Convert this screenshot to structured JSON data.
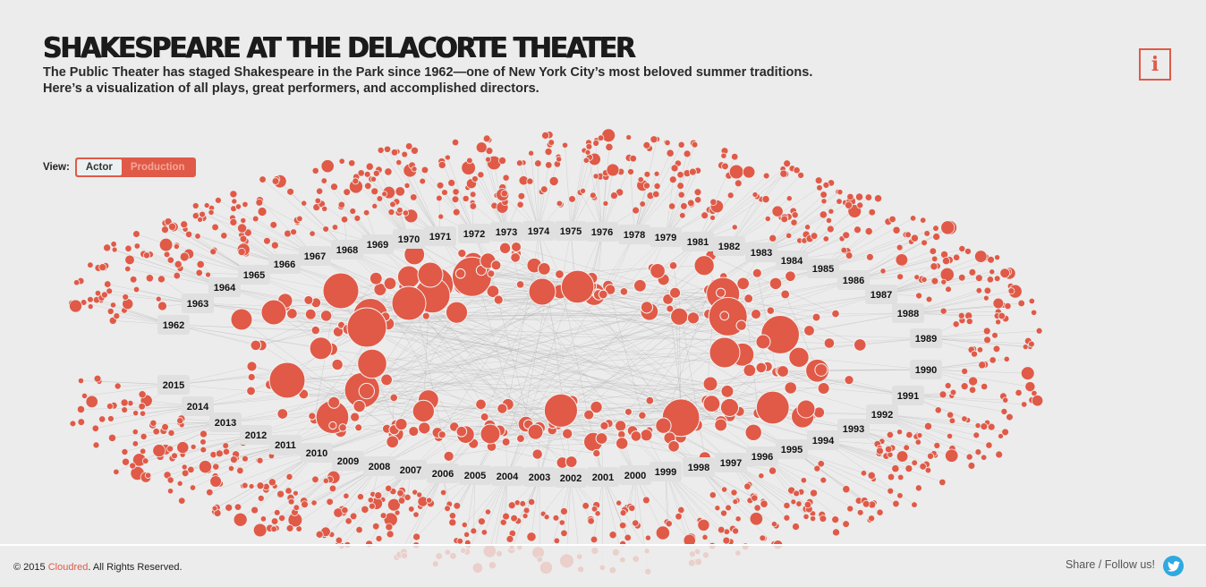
{
  "header": {
    "title": "SHAKESPEARE AT THE DELACORTE THEATER",
    "subtitle_line1": "The Public Theater has staged Shakespeare in the Park since 1962—one of New York City’s most beloved summer traditions.",
    "subtitle_line2": "Here’s a visualization of all plays, great performers, and accomplished directors."
  },
  "info_button": {
    "icon": "info-icon",
    "glyph": "i"
  },
  "view_toggle": {
    "label": "View:",
    "options": [
      {
        "label": "Actor",
        "active": true
      },
      {
        "label": "Production",
        "active": false
      }
    ]
  },
  "network": {
    "node_color": "#e05a47",
    "edge_color": "#b5b5b5",
    "year_label_bg": "#e0e0e0",
    "years": [
      "1962",
      "1963",
      "1964",
      "1965",
      "1966",
      "1967",
      "1968",
      "1969",
      "1970",
      "1971",
      "1972",
      "1973",
      "1974",
      "1975",
      "1976",
      "1978",
      "1979",
      "1981",
      "1982",
      "1983",
      "1984",
      "1985",
      "1986",
      "1987",
      "1988",
      "1989",
      "1990",
      "1991",
      "1992",
      "1993",
      "1994",
      "1995",
      "1996",
      "1997",
      "1998",
      "1999",
      "2000",
      "2001",
      "2002",
      "2003",
      "2004",
      "2005",
      "2006",
      "2007",
      "2008",
      "2009",
      "2010",
      "2011",
      "2012",
      "2013",
      "2014",
      "2015"
    ]
  },
  "footer": {
    "copyright_prefix": "© 2015 ",
    "brand": "Cloudred",
    "copyright_suffix": ". All Rights Reserved.",
    "share_text": "Share / Follow us!",
    "social_icon": "twitter-icon"
  }
}
